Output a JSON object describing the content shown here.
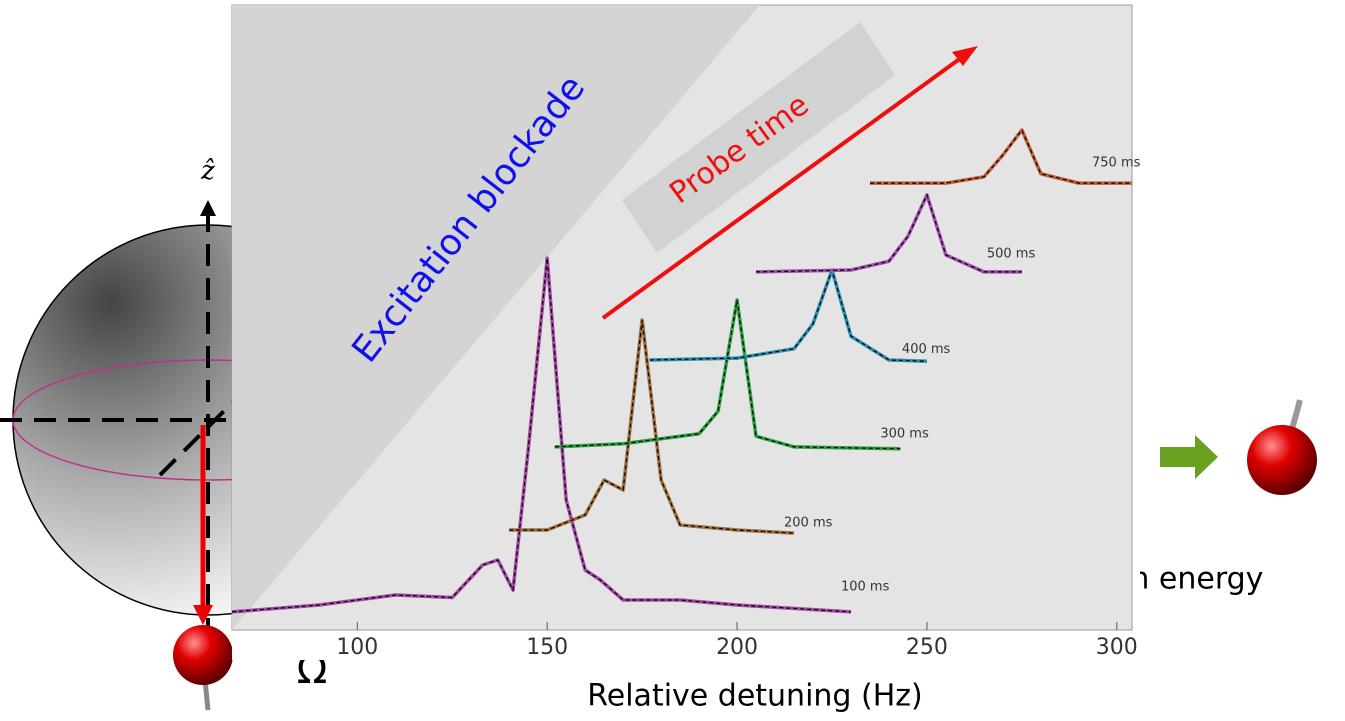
{
  "chart_data": {
    "type": "line",
    "x_label": "Relative detuning (Hz)",
    "annotations": [
      "Excitation blockade",
      "Probe time"
    ],
    "background_texts": [
      "ẑ",
      "on energy",
      "Ω"
    ],
    "xlim": [
      67,
      304
    ],
    "xticks": [
      100,
      150,
      200,
      250,
      300
    ],
    "ylim": [
      0,
      100
    ],
    "series": [
      {
        "name": "100 ms",
        "color": "#a54aa8",
        "x": [
          67,
          90,
          110,
          125,
          133,
          137,
          141,
          145,
          150,
          155,
          160,
          164,
          170,
          185,
          200,
          230
        ],
        "values": [
          2.9,
          4,
          5.6,
          5.2,
          10.4,
          11.2,
          6.4,
          28.8,
          59.5,
          20.8,
          9.6,
          8,
          4.8,
          4.8,
          4,
          2.9
        ]
      },
      {
        "name": "200 ms",
        "color": "#a0703f",
        "x": [
          140,
          150,
          160,
          165,
          170,
          175,
          180,
          185,
          200,
          215
        ],
        "values": [
          16,
          16,
          18.4,
          24,
          22.4,
          49.6,
          24,
          16.8,
          16,
          15.5
        ]
      },
      {
        "name": "300 ms",
        "color": "#2ea043",
        "x": [
          152,
          170,
          190,
          195,
          200,
          205,
          215,
          243
        ],
        "values": [
          29.3,
          29.8,
          31.4,
          35,
          52.8,
          31,
          29.3,
          29
        ]
      },
      {
        "name": "400 ms",
        "color": "#2e8fb0",
        "x": [
          177,
          200,
          215,
          220,
          225,
          230,
          240,
          250
        ],
        "values": [
          43.2,
          43.5,
          45,
          49,
          57.6,
          47,
          43.2,
          43
        ]
      },
      {
        "name": "500 ms",
        "color": "#a34fb0",
        "x": [
          205,
          230,
          240,
          245,
          250,
          255,
          265,
          275
        ],
        "values": [
          57.3,
          57.6,
          59,
          63,
          69.6,
          60,
          57.3,
          57.3
        ]
      },
      {
        "name": "750 ms",
        "color": "#c0603a",
        "x": [
          235,
          255,
          265,
          270,
          275,
          280,
          290,
          304
        ],
        "values": [
          71.5,
          71.5,
          72.5,
          76,
          80,
          73,
          71.5,
          71.5
        ]
      }
    ]
  }
}
